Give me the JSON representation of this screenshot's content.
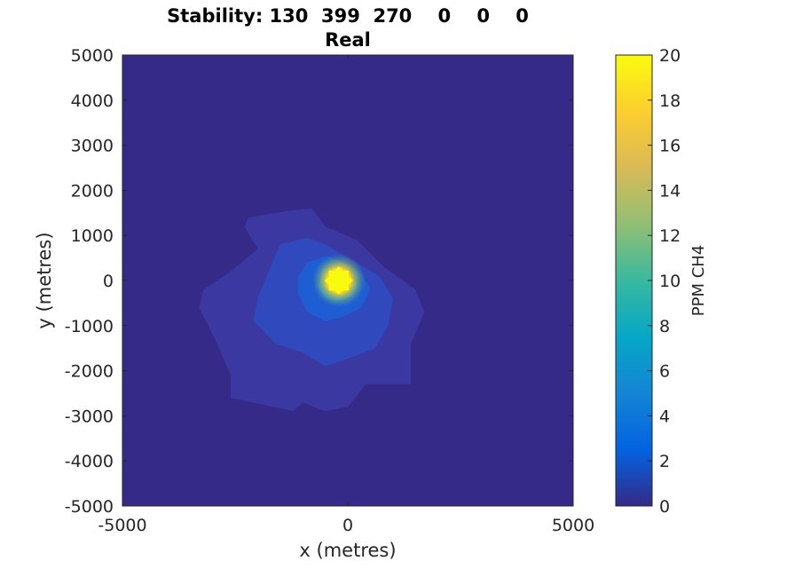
{
  "chart_data": {
    "type": "heatmap",
    "title_line1": "Stability: 130  399  270    0    0    0",
    "title_line2": "Real",
    "xlabel": "x (metres)",
    "ylabel": "y (metres)",
    "xlim": [
      -5000,
      5000
    ],
    "ylim": [
      -5000,
      5000
    ],
    "x_ticks": [
      -5000,
      0,
      5000
    ],
    "y_ticks": [
      5000,
      4000,
      3000,
      2000,
      1000,
      0,
      -1000,
      -2000,
      -3000,
      -4000,
      -5000
    ],
    "colorbar": {
      "label": "PPM CH4",
      "range": [
        0,
        20
      ],
      "ticks": [
        20,
        18,
        16,
        14,
        12,
        10,
        8,
        6,
        4,
        2,
        0
      ],
      "colormap": "parula",
      "colors": [
        "#352a87",
        "#0363e1",
        "#1485d4",
        "#06a7c6",
        "#38b99e",
        "#92bf73",
        "#d9ba56",
        "#fcce2e",
        "#f9fb0e"
      ]
    },
    "source": {
      "x": -200,
      "y": 0,
      "peak_ppm": 20
    },
    "plume_contours": [
      {
        "level": 0.5,
        "shape": [
          [
            -2200,
            1400
          ],
          [
            -1300,
            1550
          ],
          [
            -800,
            1600
          ],
          [
            -500,
            1200
          ],
          [
            200,
            900
          ],
          [
            800,
            300
          ],
          [
            1500,
            -200
          ],
          [
            1700,
            -700
          ],
          [
            1400,
            -1400
          ],
          [
            1400,
            -2300
          ],
          [
            1000,
            -2300
          ],
          [
            400,
            -2300
          ],
          [
            0,
            -2800
          ],
          [
            -500,
            -2900
          ],
          [
            -1000,
            -2700
          ],
          [
            -1200,
            -2900
          ],
          [
            -2600,
            -2600
          ],
          [
            -2600,
            -2100
          ],
          [
            -2900,
            -1400
          ],
          [
            -3300,
            -600
          ],
          [
            -3200,
            -200
          ],
          [
            -2600,
            200
          ],
          [
            -2000,
            700
          ],
          [
            -2300,
            1200
          ]
        ]
      },
      {
        "level": 1.0,
        "shape": [
          [
            -1500,
            800
          ],
          [
            -900,
            950
          ],
          [
            -500,
            800
          ],
          [
            0,
            500
          ],
          [
            700,
            100
          ],
          [
            1000,
            -400
          ],
          [
            900,
            -1000
          ],
          [
            600,
            -1500
          ],
          [
            100,
            -1700
          ],
          [
            -500,
            -1900
          ],
          [
            -1000,
            -1600
          ],
          [
            -1600,
            -1400
          ],
          [
            -2100,
            -900
          ],
          [
            -2000,
            -400
          ],
          [
            -1800,
            100
          ]
        ]
      },
      {
        "level": 2.0,
        "shape": [
          [
            -900,
            400
          ],
          [
            -450,
            550
          ],
          [
            -100,
            400
          ],
          [
            300,
            150
          ],
          [
            500,
            -200
          ],
          [
            300,
            -600
          ],
          [
            -100,
            -800
          ],
          [
            -500,
            -900
          ],
          [
            -900,
            -700
          ],
          [
            -1100,
            -300
          ],
          [
            -1100,
            100
          ]
        ]
      },
      {
        "level": 4.0,
        "shape": [
          [
            -550,
            250
          ],
          [
            -250,
            300
          ],
          [
            50,
            150
          ],
          [
            200,
            -100
          ],
          [
            100,
            -350
          ],
          [
            -200,
            -450
          ],
          [
            -500,
            -400
          ],
          [
            -650,
            -150
          ]
        ]
      },
      {
        "level": 8.0,
        "shape": [
          [
            -400,
            150
          ],
          [
            -150,
            200
          ],
          [
            50,
            50
          ],
          [
            50,
            -150
          ],
          [
            -150,
            -300
          ],
          [
            -350,
            -250
          ],
          [
            -450,
            -50
          ]
        ]
      }
    ]
  }
}
